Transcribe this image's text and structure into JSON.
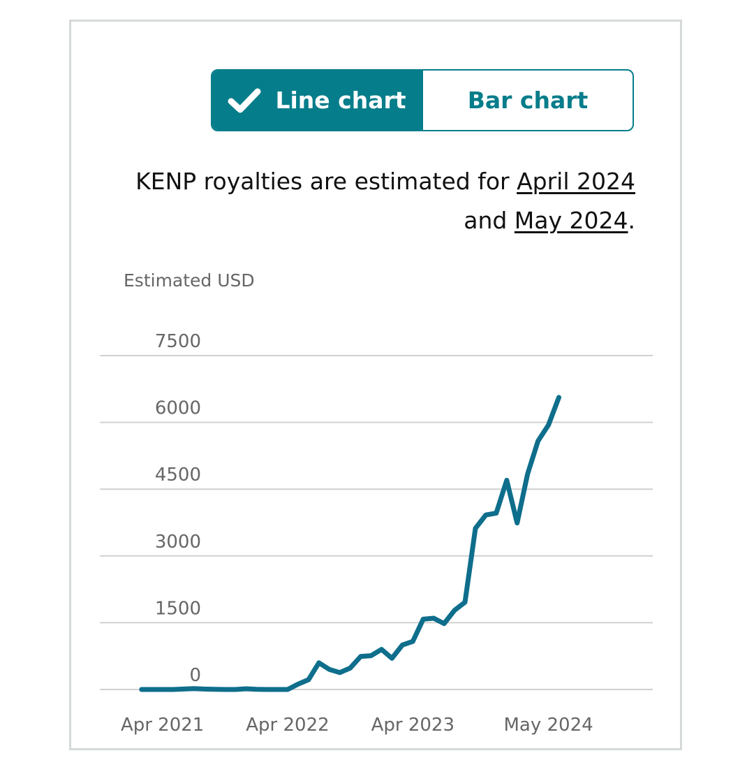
{
  "toggle": {
    "line_label": "Line chart",
    "bar_label": "Bar chart",
    "active": "line"
  },
  "note": {
    "prefix": "KENP royalties are estimated for ",
    "link1": "April 2024",
    "middle": " and ",
    "link2": "May 2024",
    "suffix": "."
  },
  "colors": {
    "accent": "#067d8a",
    "line": "#0e6e8c",
    "grid": "#d0d0d0",
    "text": "#111111",
    "muted": "#666666"
  },
  "chart_data": {
    "type": "line",
    "title": "",
    "ylabel": "Estimated USD",
    "xlabel": "",
    "ylim": [
      0,
      7500
    ],
    "yticks": [
      0,
      1500,
      3000,
      4500,
      6000,
      7500
    ],
    "ytick_labels": [
      "0",
      "1500",
      "3000",
      "4500",
      "6000",
      "7500"
    ],
    "x_start_month": "Feb 2021",
    "x_ticks": [
      {
        "index": 2,
        "label": "Apr 2021"
      },
      {
        "index": 14,
        "label": "Apr 2022"
      },
      {
        "index": 26,
        "label": "Apr 2023"
      },
      {
        "index": 39,
        "label": "May 2024"
      }
    ],
    "x_range": [
      -4,
      49
    ],
    "series": [
      {
        "name": "KENP royalties",
        "values": [
          0,
          0,
          0,
          0,
          10,
          20,
          10,
          5,
          0,
          0,
          15,
          5,
          0,
          0,
          0,
          120,
          220,
          600,
          450,
          380,
          480,
          740,
          760,
          900,
          700,
          1000,
          1080,
          1580,
          1600,
          1480,
          1780,
          1960,
          3620,
          3920,
          3960,
          4700,
          3740,
          4840,
          5580,
          5940,
          6560
        ]
      }
    ],
    "grid": true,
    "legend": "none"
  }
}
